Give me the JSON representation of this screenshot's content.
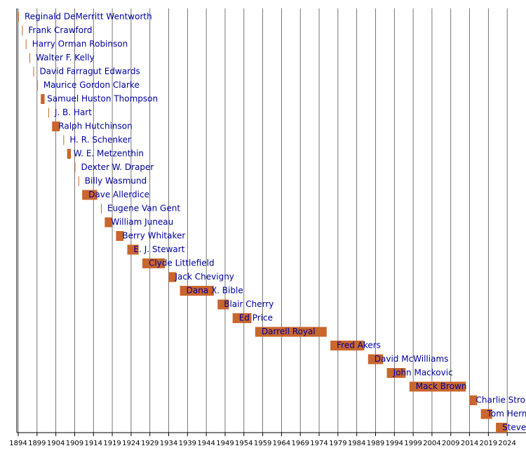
{
  "chart_data": {
    "type": "timeline",
    "categories": [
      "Reginald DeMerritt Wentworth",
      "Frank Crawford",
      "Harry Orman Robinson",
      "Walter F. Kelly",
      "David Farragut Edwards",
      "Maurice Gordon Clarke",
      "Samuel Huston Thompson",
      "J. B. Hart",
      "Ralph Hutchinson",
      "H. R. Schenker",
      "W. E. Metzenthin",
      "Dexter W. Draper",
      "Billy Wasmund",
      "Dave Allerdice",
      "Eugene Van Gent",
      "William Juneau",
      "Berry Whitaker",
      "E. J. Stewart",
      "Clyde Littlefield",
      "Jack Chevigny",
      "Dana X. Bible",
      "Blair Cherry",
      "Ed Price",
      "Darrell Royal",
      "Fred Akers",
      "David McWilliams",
      "John Mackovic",
      "Mack Brown",
      "Charlie Strong",
      "Tom Herman",
      "Steve Sarkisian"
    ],
    "start": [
      1894,
      1895,
      1896,
      1897,
      1898,
      1899,
      1900,
      1902,
      1903,
      1906,
      1907,
      1909,
      1910,
      1911,
      1916,
      1917,
      1920,
      1923,
      1927,
      1934,
      1937,
      1947,
      1951,
      1957,
      1977,
      1987,
      1992,
      1998,
      2014,
      2017,
      2021
    ],
    "end": [
      1894,
      1895,
      1896,
      1897,
      1898,
      1899,
      1901,
      1902,
      1905,
      1906,
      1908,
      1909,
      1910,
      1915,
      1916,
      1919,
      1922,
      1926,
      1933,
      1936,
      1946,
      1950,
      1956,
      1976,
      1986,
      1991,
      1997,
      2013,
      2016,
      2020,
      2024
    ],
    "color": "#c8662c",
    "label_color": "#0000a0",
    "xlim": [
      1894,
      2029
    ],
    "xticks": [
      1894,
      1899,
      1904,
      1909,
      1914,
      1919,
      1924,
      1929,
      1934,
      1939,
      1944,
      1949,
      1954,
      1959,
      1964,
      1969,
      1974,
      1979,
      1984,
      1989,
      1994,
      1999,
      2004,
      2009,
      2014,
      2019,
      2024
    ],
    "grid": true
  }
}
